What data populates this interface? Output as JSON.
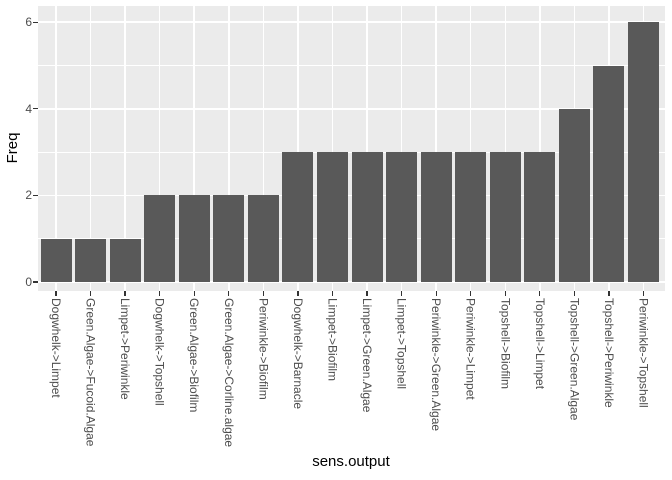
{
  "chart_data": {
    "type": "bar",
    "title": "",
    "xlabel": "sens.output",
    "ylabel": "Freq",
    "categories": [
      "Dogwhelk->Limpet",
      "Green.Algae->Fucoid.Algae",
      "Limpet->Periwinkle",
      "Dogwhelk->Topshell",
      "Green.Algae->Biofilm",
      "Green.Algae->Corline.algae",
      "Periwinkle->Biofilm",
      "Dogwhelk->Barnacle",
      "Limpet->Biofilm",
      "Limpet->Green.Algae",
      "Limpet->Topshell",
      "Periwinkle->Green.Algae",
      "Periwinkle->Limpet",
      "Topshell->Biofilm",
      "Topshell->Limpet",
      "Topshell->Green.Algae",
      "Topshell->Periwinkle",
      "Periwinkle->Topshell"
    ],
    "values": [
      1,
      1,
      1,
      2,
      2,
      2,
      2,
      3,
      3,
      3,
      3,
      3,
      3,
      3,
      3,
      4,
      5,
      6
    ],
    "y_major_ticks": [
      0,
      2,
      4,
      6
    ],
    "y_major_tick_labels": [
      "0",
      "2",
      "4",
      "6"
    ],
    "y_minor_ticks": [
      1,
      3,
      5
    ],
    "ylim": [
      0,
      6.3
    ],
    "grid": "horizontal major+minor white, vertical white at category centers",
    "legend": "none",
    "style": {
      "panel_background": "#EBEBEB",
      "bar_fill": "#595959",
      "gridline_color": "#FFFFFF",
      "tick_label_color": "#4D4D4D",
      "axis_title_color": "#000000",
      "tick_mark_color": "#333333"
    }
  }
}
